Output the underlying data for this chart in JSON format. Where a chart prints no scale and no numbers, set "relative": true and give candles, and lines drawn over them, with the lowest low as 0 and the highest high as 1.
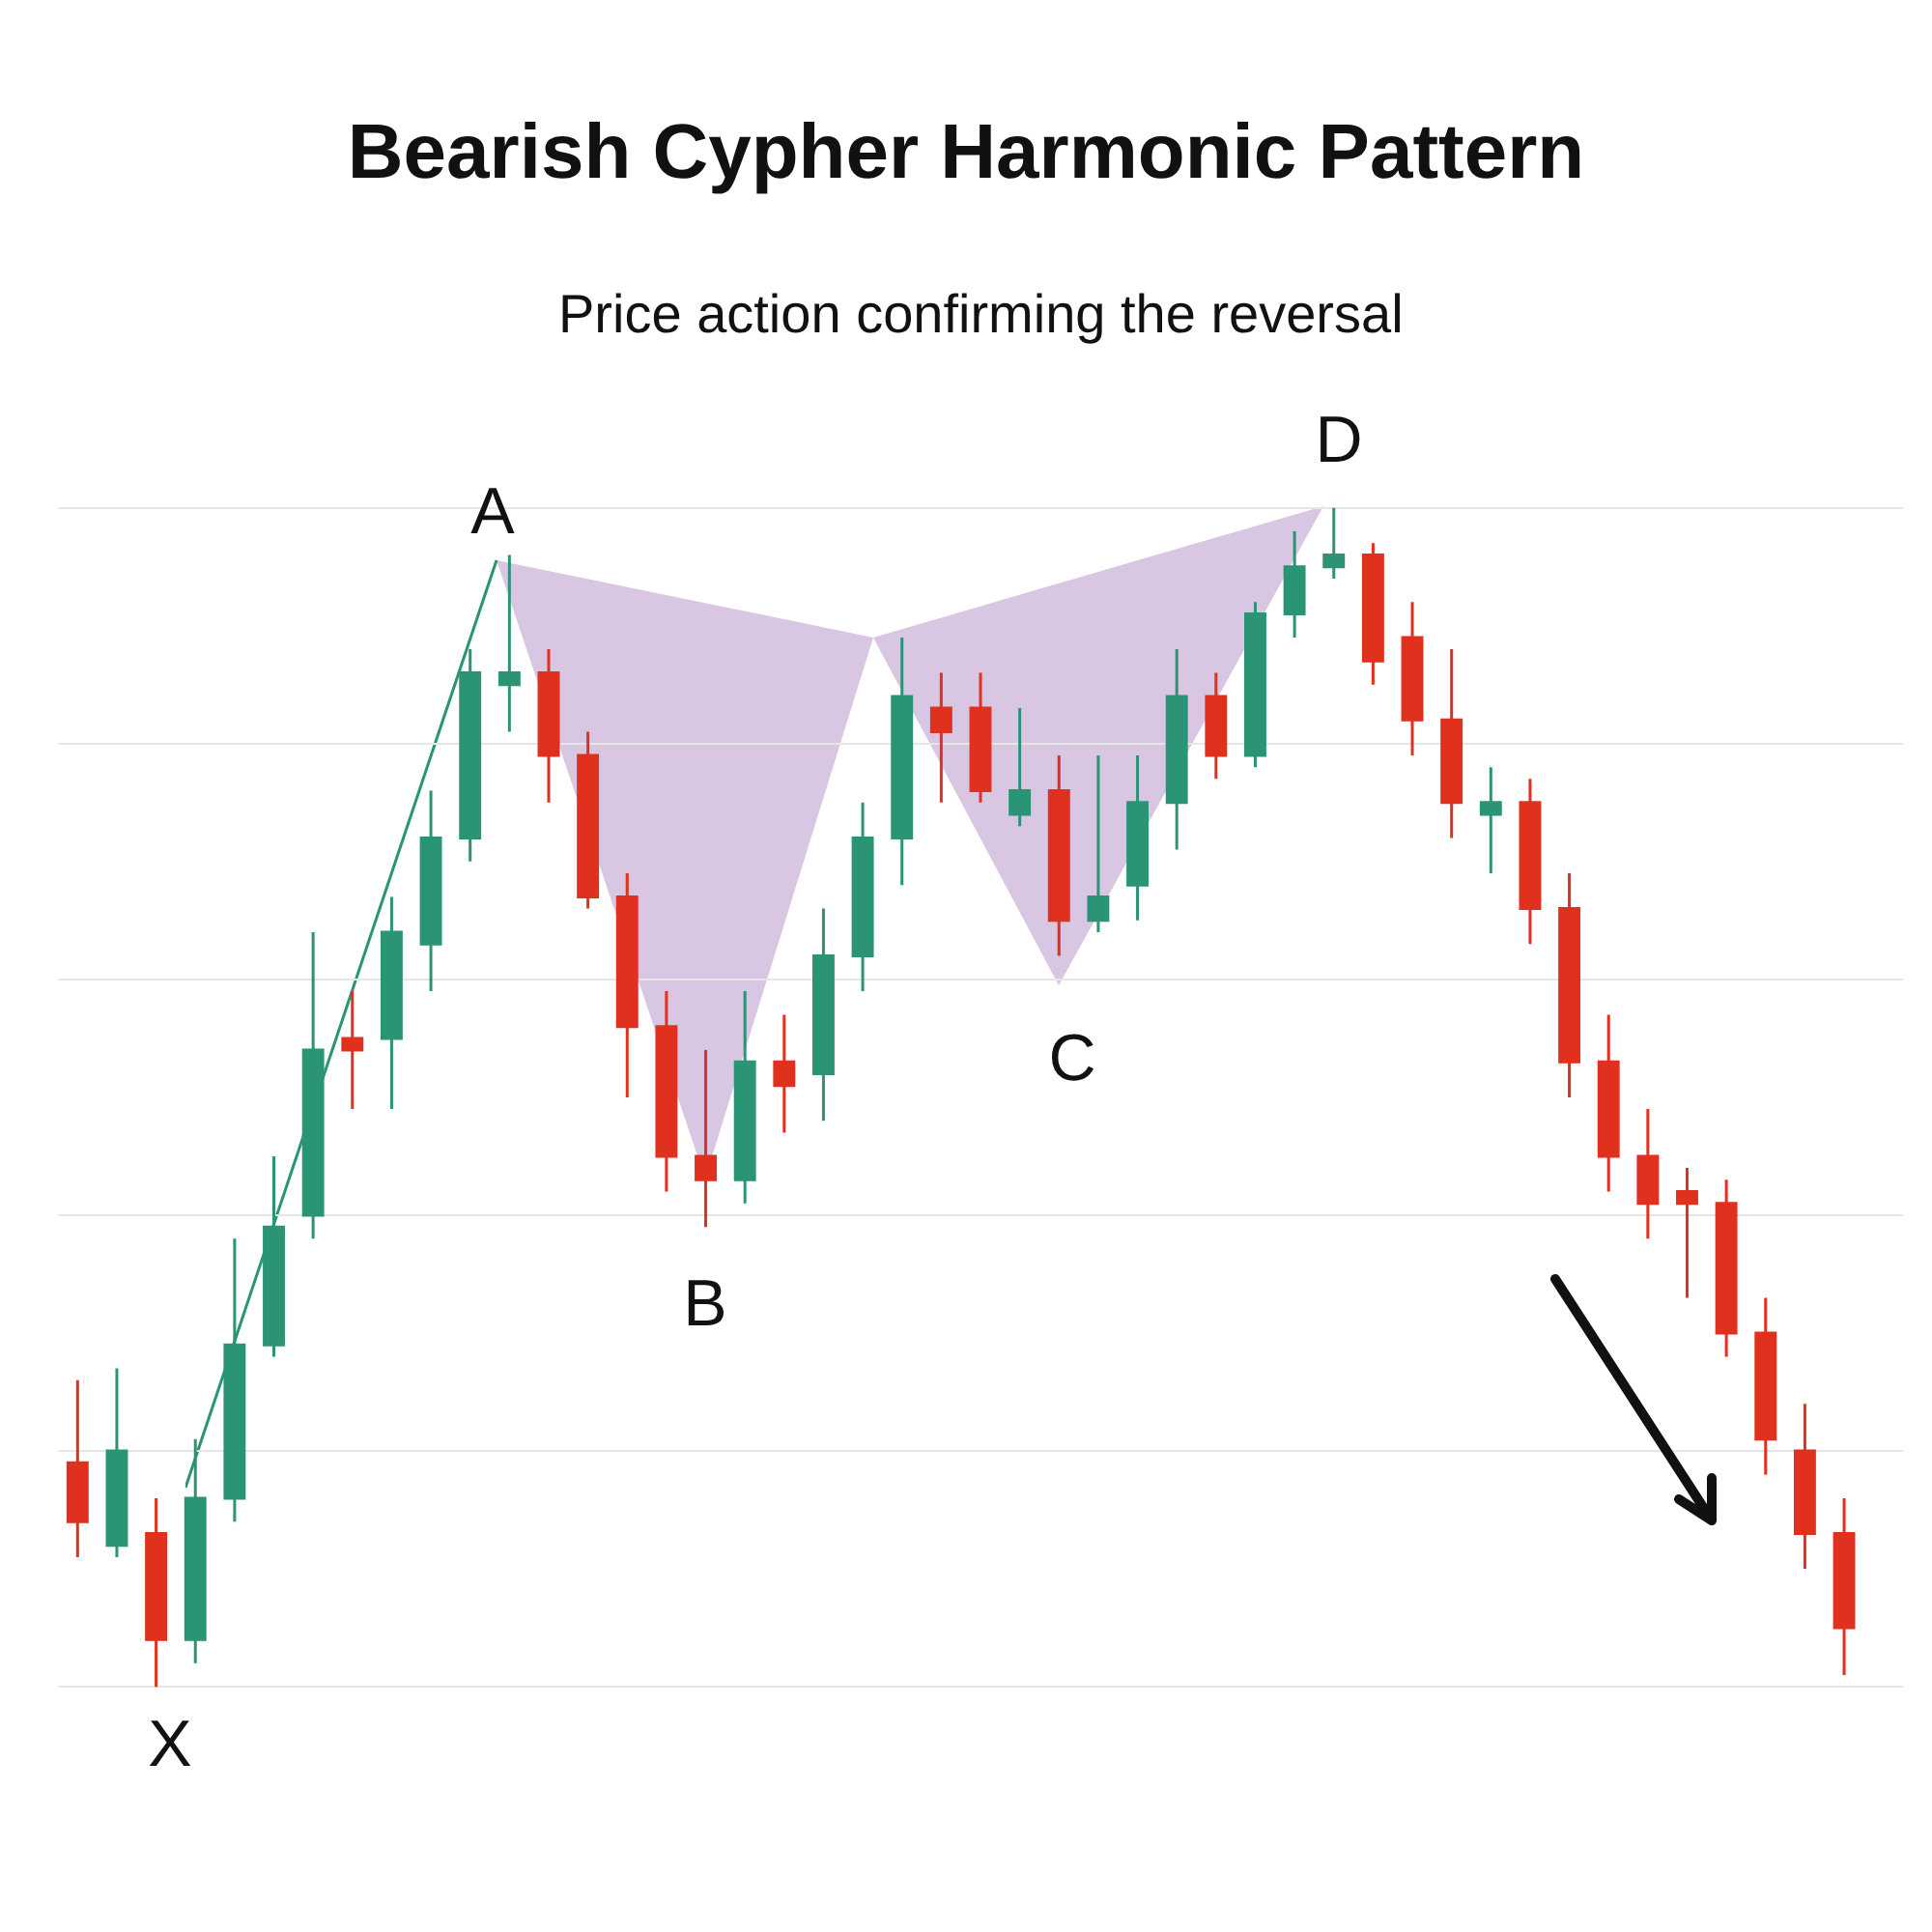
{
  "chart_data": {
    "type": "candlestick",
    "title": "Bearish Cypher Harmonic Pattern",
    "subtitle": "Price action confirming the reversal",
    "relative": true,
    "grid": "y",
    "categories": [
      null,
      null,
      null,
      null,
      null,
      null,
      null,
      null,
      null,
      null,
      null,
      null,
      null,
      null,
      null,
      null,
      null,
      null,
      null,
      null,
      null,
      null,
      null,
      null,
      null,
      null,
      null,
      null,
      null,
      null,
      null,
      null,
      null,
      null,
      null,
      null,
      null,
      null,
      null,
      null,
      null,
      null,
      null,
      null,
      null,
      null
    ],
    "ohlc": [
      [
        0.19,
        0.26,
        0.11,
        0.14
      ],
      [
        0.12,
        0.27,
        0.11,
        0.2
      ],
      [
        0.13,
        0.16,
        0,
        0.04
      ],
      [
        0.04,
        0.21,
        0.02,
        0.16
      ],
      [
        0.16,
        0.38,
        0.14,
        0.29
      ],
      [
        0.29,
        0.45,
        0.28,
        0.39
      ],
      [
        0.4,
        0.64,
        0.38,
        0.54
      ],
      [
        0.55,
        0.59,
        0.49,
        0.54
      ],
      [
        0.55,
        0.67,
        0.49,
        0.64
      ],
      [
        0.63,
        0.76,
        0.59,
        0.72
      ],
      [
        0.72,
        0.88,
        0.7,
        0.86
      ],
      [
        0.85,
        0.96,
        0.81,
        0.86
      ],
      [
        0.86,
        0.88,
        0.75,
        0.79
      ],
      [
        0.79,
        0.81,
        0.66,
        0.67
      ],
      [
        0.67,
        0.69,
        0.5,
        0.56
      ],
      [
        0.56,
        0.59,
        0.42,
        0.45
      ],
      [
        0.45,
        0.54,
        0.39,
        0.43
      ],
      [
        0.43,
        0.59,
        0.41,
        0.53
      ],
      [
        0.53,
        0.57,
        0.47,
        0.51
      ],
      [
        0.52,
        0.66,
        0.48,
        0.62
      ],
      [
        0.62,
        0.75,
        0.59,
        0.72
      ],
      [
        0.72,
        0.89,
        0.68,
        0.84
      ],
      [
        0.83,
        0.86,
        0.75,
        0.81
      ],
      [
        0.83,
        0.86,
        0.75,
        0.76
      ],
      [
        0.74,
        0.83,
        0.73,
        0.76
      ],
      [
        0.76,
        0.79,
        0.62,
        0.65
      ],
      [
        0.65,
        0.79,
        0.64,
        0.67
      ],
      [
        0.68,
        0.79,
        0.65,
        0.75
      ],
      [
        0.75,
        0.88,
        0.71,
        0.84
      ],
      [
        0.84,
        0.86,
        0.77,
        0.79
      ],
      [
        0.79,
        0.92,
        0.78,
        0.91
      ],
      [
        0.91,
        0.98,
        0.89,
        0.95
      ],
      [
        0.95,
        1,
        0.94,
        0.96
      ],
      [
        0.96,
        0.97,
        0.85,
        0.87
      ],
      [
        0.89,
        0.92,
        0.79,
        0.82
      ],
      [
        0.82,
        0.88,
        0.72,
        0.75
      ],
      [
        0.74,
        0.78,
        0.69,
        0.75
      ],
      [
        0.75,
        0.77,
        0.63,
        0.66
      ],
      [
        0.66,
        0.69,
        0.5,
        0.53
      ],
      [
        0.53,
        0.57,
        0.42,
        0.45
      ],
      [
        0.45,
        0.49,
        0.38,
        0.41
      ],
      [
        0.42,
        0.44,
        0.33,
        0.41
      ],
      [
        0.41,
        0.43,
        0.28,
        0.3
      ],
      [
        0.3,
        0.33,
        0.18,
        0.21
      ],
      [
        0.2,
        0.24,
        0.1,
        0.13
      ],
      [
        0.13,
        0.16,
        0.01,
        0.05
      ]
    ],
    "colors": [
      "#e0301e",
      "#2a9474",
      "#e0301e",
      "#2a9474",
      "#2a9474",
      "#2a9474",
      "#2a9474",
      "#e0301e",
      "#2a9474",
      "#2a9474",
      "#2a9474",
      "#2a9474",
      "#e0301e",
      "#e0301e",
      "#e0301e",
      "#e0301e",
      "#e0301e",
      "#2a9474",
      "#e0301e",
      "#2a9474",
      "#2a9474",
      "#2a9474",
      "#e0301e",
      "#e0301e",
      "#2a9474",
      "#e0301e",
      "#2a9474",
      "#2a9474",
      "#2a9474",
      "#e0301e",
      "#2a9474",
      "#2a9474",
      "#2a9474",
      "#e0301e",
      "#e0301e",
      "#e0301e",
      "#2a9474",
      "#e0301e",
      "#e0301e",
      "#e0301e",
      "#e0301e",
      "#e0301e",
      "#e0301e",
      "#e0301e",
      "#e0301e",
      "#e0301e"
    ],
    "annotations": [
      "X",
      "A",
      "B",
      "C",
      "D"
    ]
  }
}
